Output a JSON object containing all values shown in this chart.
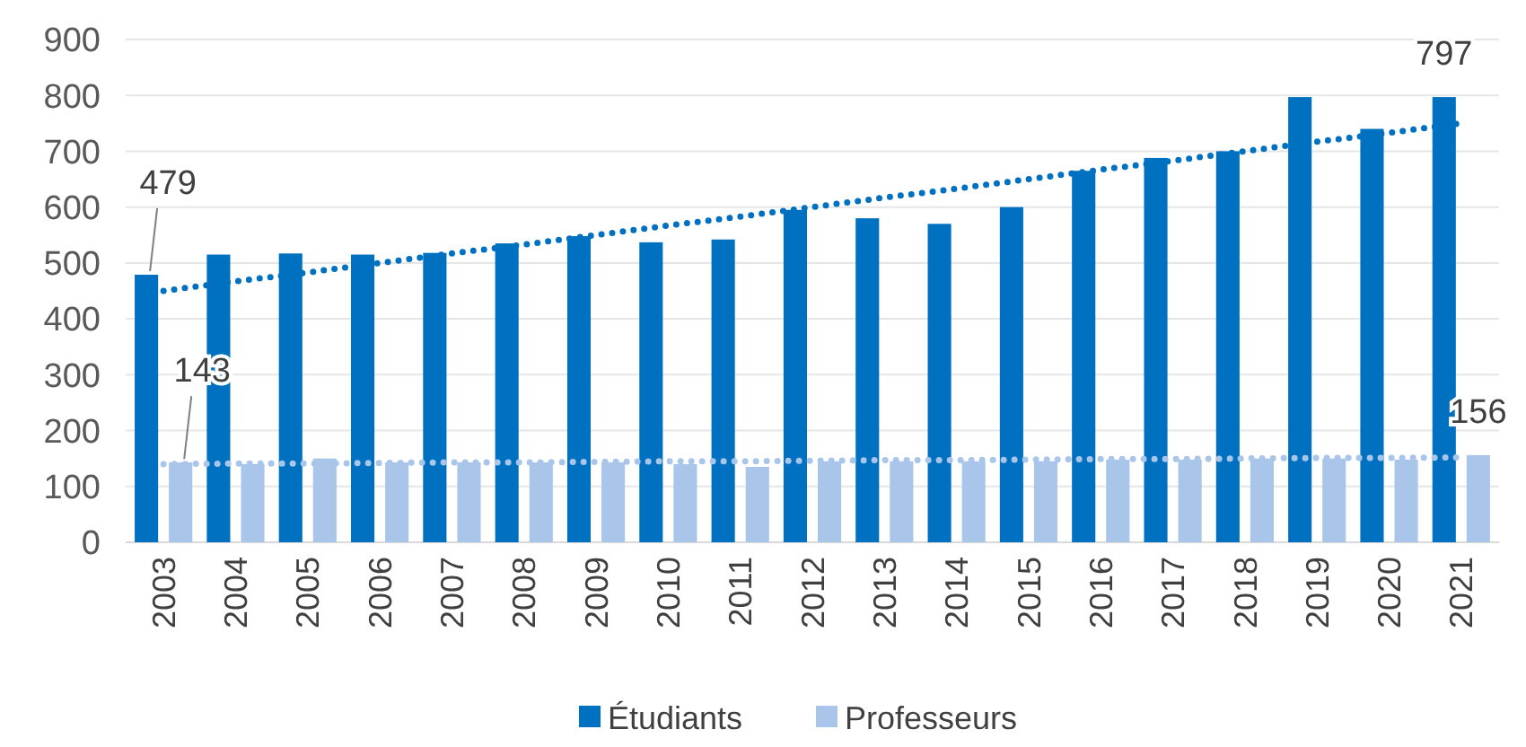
{
  "chart_data": {
    "type": "bar",
    "categories": [
      "2003",
      "2004",
      "2005",
      "2006",
      "2007",
      "2008",
      "2009",
      "2010",
      "2011",
      "2012",
      "2013",
      "2014",
      "2015",
      "2016",
      "2017",
      "2018",
      "2019",
      "2020",
      "2021"
    ],
    "series": [
      {
        "name": "Étudiants",
        "color": "#0070c0",
        "values": [
          479,
          515,
          517,
          515,
          518,
          535,
          548,
          537,
          542,
          595,
          580,
          570,
          600,
          665,
          688,
          700,
          797,
          740,
          797
        ],
        "value_labels": [
          "479",
          null,
          null,
          null,
          null,
          null,
          null,
          null,
          null,
          null,
          null,
          null,
          null,
          null,
          null,
          null,
          null,
          null,
          "797"
        ]
      },
      {
        "name": "Professeurs",
        "color": "#a9c5ea",
        "values": [
          143,
          140,
          150,
          143,
          143,
          143,
          143,
          140,
          135,
          145,
          145,
          145,
          145,
          148,
          148,
          150,
          150,
          148,
          156
        ],
        "value_labels": [
          "143",
          null,
          null,
          null,
          null,
          null,
          null,
          null,
          null,
          null,
          null,
          null,
          null,
          null,
          null,
          null,
          null,
          null,
          "156"
        ]
      },
      {
        "type": "line",
        "color": "#0070c0",
        "line_style": "dotted",
        "values": [
          450,
          467,
          483,
          500,
          517,
          533,
          550,
          567,
          583,
          600,
          617,
          633,
          650,
          667,
          683,
          700,
          717,
          733,
          750
        ]
      },
      {
        "type": "line",
        "color": "#a9c5ea",
        "line_style": "dotted",
        "values": [
          140,
          141,
          141,
          142,
          143,
          143,
          144,
          145,
          145,
          146,
          147,
          147,
          148,
          149,
          149,
          150,
          151,
          151,
          152
        ]
      }
    ],
    "ylim": [
      0,
      900
    ],
    "yticks": [
      0,
      100,
      200,
      300,
      400,
      500,
      600,
      700,
      800,
      900
    ],
    "grid": "y",
    "legend": "bottom"
  }
}
